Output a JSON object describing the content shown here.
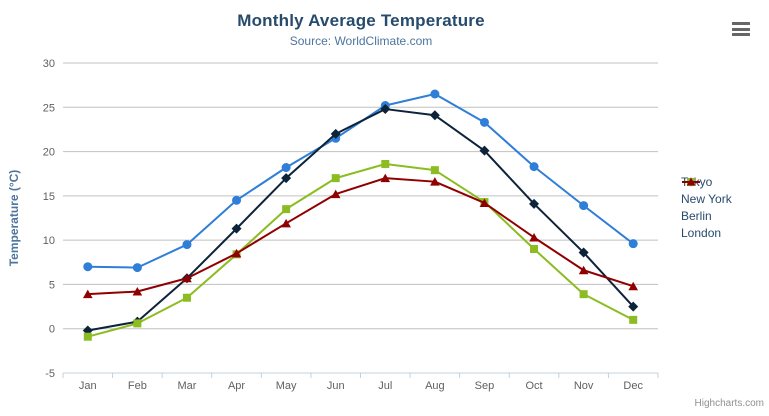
{
  "header": {
    "title": "Monthly Average Temperature",
    "subtitle": "Source: WorldClimate.com"
  },
  "credits": "Highcharts.com",
  "export_menu_icon": "hamburger-menu-icon",
  "colors": {
    "title": "#274b6d",
    "subtitle": "#4d759e",
    "axis_title": "#4d759e",
    "axis_labels": "#606060",
    "axis_line": "#c0d0e0",
    "grid_line": "#c0c0c0",
    "legend_text": "#274b6d",
    "credits_text": "#909090",
    "background": "#ffffff"
  },
  "chart_data": {
    "type": "line",
    "title": "Monthly Average Temperature",
    "subtitle": "Source: WorldClimate.com",
    "xlabel": "",
    "ylabel": "Temperature (°C)",
    "categories": [
      "Jan",
      "Feb",
      "Mar",
      "Apr",
      "May",
      "Jun",
      "Jul",
      "Aug",
      "Sep",
      "Oct",
      "Nov",
      "Dec"
    ],
    "ylim": [
      -5,
      30
    ],
    "yticks": [
      30,
      25,
      20,
      15,
      10,
      5,
      0,
      -5
    ],
    "grid": "horizontal-only",
    "legend_position": "right",
    "series": [
      {
        "name": "Tokyo",
        "color": "#2f7ed8",
        "marker": "circle",
        "values": [
          7.0,
          6.9,
          9.5,
          14.5,
          18.2,
          21.5,
          25.2,
          26.5,
          23.3,
          18.3,
          13.9,
          9.6
        ]
      },
      {
        "name": "New York",
        "color": "#0d233a",
        "marker": "diamond",
        "values": [
          -0.2,
          0.8,
          5.7,
          11.3,
          17.0,
          22.0,
          24.8,
          24.1,
          20.1,
          14.1,
          8.6,
          2.5
        ]
      },
      {
        "name": "Berlin",
        "color": "#8bbc21",
        "marker": "square",
        "values": [
          -0.9,
          0.6,
          3.5,
          8.4,
          13.5,
          17.0,
          18.6,
          17.9,
          14.3,
          9.0,
          3.9,
          1.0
        ]
      },
      {
        "name": "London",
        "color": "#910000",
        "marker": "triangle",
        "values": [
          3.9,
          4.2,
          5.7,
          8.5,
          11.9,
          15.2,
          17.0,
          16.6,
          14.2,
          10.3,
          6.6,
          4.8
        ]
      }
    ]
  }
}
